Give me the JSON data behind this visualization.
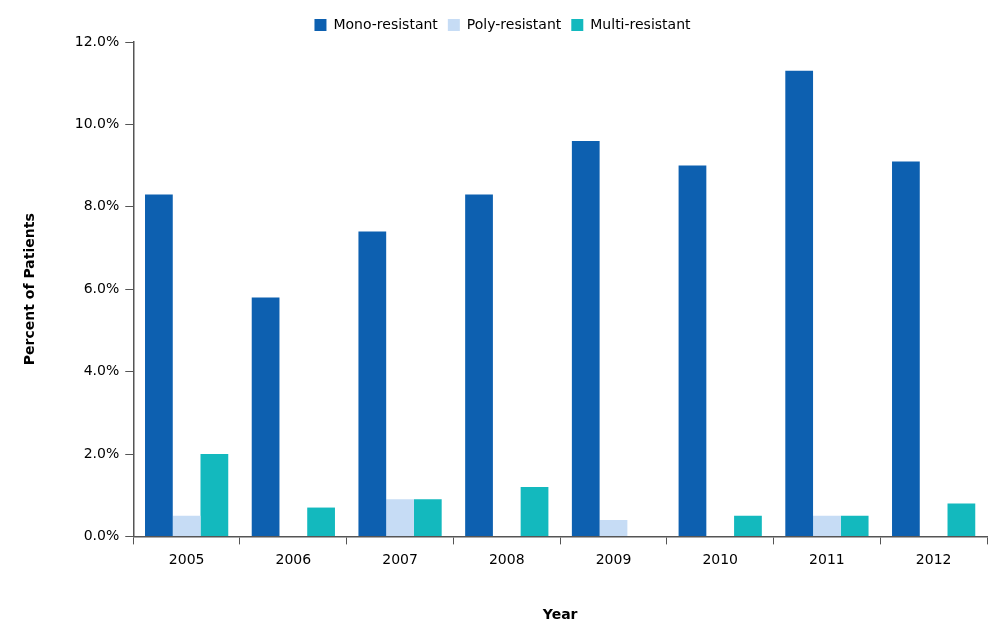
{
  "chart_data": {
    "type": "bar",
    "xlabel": "Year",
    "ylabel": "Percent of Patients",
    "categories": [
      "2005",
      "2006",
      "2007",
      "2008",
      "2009",
      "2010",
      "2011",
      "2012"
    ],
    "series": [
      {
        "name": "Mono-resistant",
        "color": "#0d60b0",
        "values": [
          8.3,
          5.8,
          7.4,
          8.3,
          9.6,
          9.0,
          11.3,
          9.1
        ]
      },
      {
        "name": "Poly-resistant",
        "color": "#c6dcf5",
        "values": [
          0.5,
          0,
          0.9,
          0,
          0.4,
          0,
          0.5,
          0
        ]
      },
      {
        "name": "Multi-resistant",
        "color": "#13b9be",
        "values": [
          2.0,
          0.7,
          0.9,
          1.2,
          0,
          0.5,
          0.5,
          0.8
        ]
      }
    ],
    "ylim": [
      0,
      12
    ],
    "yticks": [
      {
        "value": 0,
        "label": "0.0%"
      },
      {
        "value": 2,
        "label": "2.0%"
      },
      {
        "value": 4,
        "label": "4.0%"
      },
      {
        "value": 6,
        "label": "6.0%"
      },
      {
        "value": 8,
        "label": "8.0%"
      },
      {
        "value": 10,
        "label": "10.0%"
      },
      {
        "value": 12,
        "label": "12.0%"
      }
    ],
    "grid": false,
    "legend": "top"
  }
}
